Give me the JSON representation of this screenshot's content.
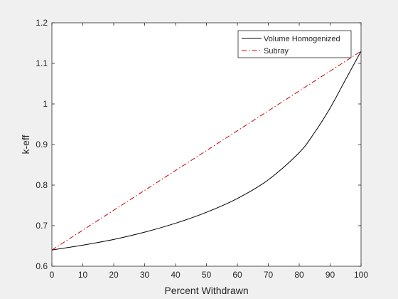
{
  "chart_data": {
    "type": "line",
    "xlabel": "Percent Withdrawn",
    "ylabel": "k-eff",
    "xlim": [
      0,
      100
    ],
    "ylim": [
      0.6,
      1.2
    ],
    "xticks": [
      0,
      10,
      20,
      30,
      40,
      50,
      60,
      70,
      80,
      90,
      100
    ],
    "yticks": [
      0.6,
      0.7,
      0.8,
      0.9,
      1.0,
      1.1,
      1.2
    ],
    "xtick_labels": [
      "0",
      "10",
      "20",
      "30",
      "40",
      "50",
      "60",
      "70",
      "80",
      "90",
      "100"
    ],
    "ytick_labels": [
      "0.6",
      "0.7",
      "0.8",
      "0.9",
      "1",
      "1.1",
      "1.2"
    ],
    "grid": false,
    "legend_position": "top-right",
    "series": [
      {
        "name": "Volume Homogenized",
        "color": "#000000",
        "line_style": "solid",
        "x": [
          0,
          10,
          20,
          30,
          40,
          50,
          60,
          70,
          80,
          85,
          90,
          95,
          100
        ],
        "y": [
          0.64,
          0.652,
          0.666,
          0.684,
          0.706,
          0.733,
          0.767,
          0.813,
          0.88,
          0.93,
          0.99,
          1.06,
          1.13
        ]
      },
      {
        "name": "Subray",
        "color": "#cc0000",
        "line_style": "dash-dot",
        "x": [
          0,
          100
        ],
        "y": [
          0.64,
          1.13
        ]
      }
    ]
  }
}
